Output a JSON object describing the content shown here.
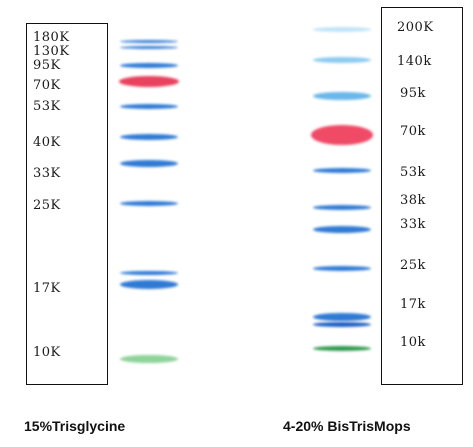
{
  "gels": [
    {
      "caption": "15%Trisglycine",
      "markers": [
        {
          "label": "180K",
          "color": "#3b82d6"
        },
        {
          "label": "130K",
          "color": "#3b82d6"
        },
        {
          "label": "95K",
          "color": "#2f7ad4"
        },
        {
          "label": "70K",
          "color": "#e8425e"
        },
        {
          "label": "53K",
          "color": "#2f7ad4"
        },
        {
          "label": "40K",
          "color": "#2f7ad4"
        },
        {
          "label": "33K",
          "color": "#2f7ad4"
        },
        {
          "label": "25K",
          "color": "#2f7ad4"
        },
        {
          "label": "17K",
          "color": "#2f7ad4"
        },
        {
          "label": "10K",
          "color": "#8fd39a"
        }
      ]
    },
    {
      "caption": "4-20% BisTrisMops",
      "markers": [
        {
          "label": "200K",
          "color": "#bfe4f7"
        },
        {
          "label": "140k",
          "color": "#8ccbf0"
        },
        {
          "label": "95k",
          "color": "#6ab7ea"
        },
        {
          "label": "70k",
          "color": "#ef4a66"
        },
        {
          "label": "53k",
          "color": "#2f7ad4"
        },
        {
          "label": "38k",
          "color": "#2f7ad4"
        },
        {
          "label": "33k",
          "color": "#2f7ad4"
        },
        {
          "label": "25k",
          "color": "#2f7ad4"
        },
        {
          "label": "17k",
          "color": "#2f7ad4"
        },
        {
          "label": "10k",
          "color": "#2f9a4e"
        }
      ]
    }
  ],
  "extra_bands": {
    "left_lane": [
      "#2f7ad4"
    ],
    "right_lane": [
      "#1f5fc4"
    ]
  }
}
